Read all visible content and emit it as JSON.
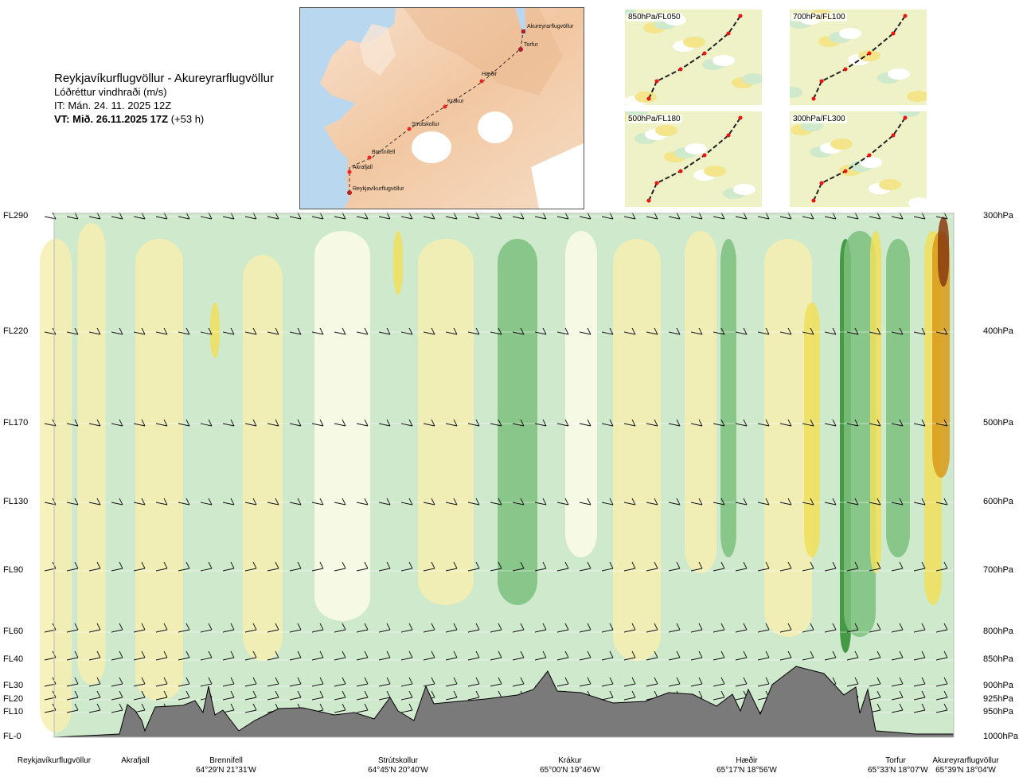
{
  "header": {
    "route": "Reykjavíkurflugvöllur - Akureyrarflugvöllur",
    "product": "Lóðréttur vindhraði (m/s)",
    "issue_time": "IT: Mán. 24. 11. 2025 12Z",
    "valid_time": "VT: Mið. 26.11.2025 17Z",
    "lead": "(+53 h)"
  },
  "map": {
    "places": [
      "Akureyrarflugvöllur",
      "Torfur",
      "Hæðir",
      "Krákur",
      "Strútskollur",
      "Brennifell",
      "Akrafjall",
      "Reykjavíkurflugvöllur"
    ]
  },
  "minimaps": [
    {
      "label": "850hPa/FL050"
    },
    {
      "label": "700hPa/FL100"
    },
    {
      "label": "500hPa/FL180"
    },
    {
      "label": "300hPa/FL300"
    }
  ],
  "chart_data": {
    "type": "heatmap",
    "title": "Lóðréttur vindhraði (m/s)",
    "levels": [
      {
        "fl": "FL290",
        "pressure": "300hPa"
      },
      {
        "fl": "FL220",
        "pressure": "400hPa"
      },
      {
        "fl": "FL170",
        "pressure": "500hPa"
      },
      {
        "fl": "FL130",
        "pressure": "600hPa"
      },
      {
        "fl": "FL90",
        "pressure": "700hPa"
      },
      {
        "fl": "FL60",
        "pressure": "800hPa"
      },
      {
        "fl": "FL40",
        "pressure": "850hPa"
      },
      {
        "fl": "FL30",
        "pressure": "900hPa"
      },
      {
        "fl": "FL20",
        "pressure": "925hPa"
      },
      {
        "fl": "FL10",
        "pressure": "950hPa"
      },
      {
        "fl": "FL-0",
        "pressure": "1000hPa"
      }
    ],
    "waypoints": [
      {
        "name": "Reykjavíkurflugvöllur",
        "coord": ""
      },
      {
        "name": "Akrafjall",
        "coord": ""
      },
      {
        "name": "Brennifell",
        "coord": "64°29'N 21°31'W"
      },
      {
        "name": "Strútskollur",
        "coord": "64°45'N 20°40'W"
      },
      {
        "name": "Krákur",
        "coord": "65°00'N 19°46'W"
      },
      {
        "name": "Hæðir",
        "coord": "65°17'N 18°56'W"
      },
      {
        "name": "Torfur",
        "coord": "65°33'N 18°07'W"
      },
      {
        "name": "Akureyrarflugvöllur",
        "coord": "65°39'N 18°04'W"
      }
    ],
    "colors": {
      "strong_down": "#2e8b2e",
      "down": "#7cbf7c",
      "weak_down": "#cfe9cc",
      "neutral": "#fdfce8",
      "weak_up": "#f6efb0",
      "up": "#f0df5a",
      "strong_up": "#d99a1a",
      "very_strong_up": "#8a3b10",
      "terrain": "#7a7a7a"
    }
  }
}
